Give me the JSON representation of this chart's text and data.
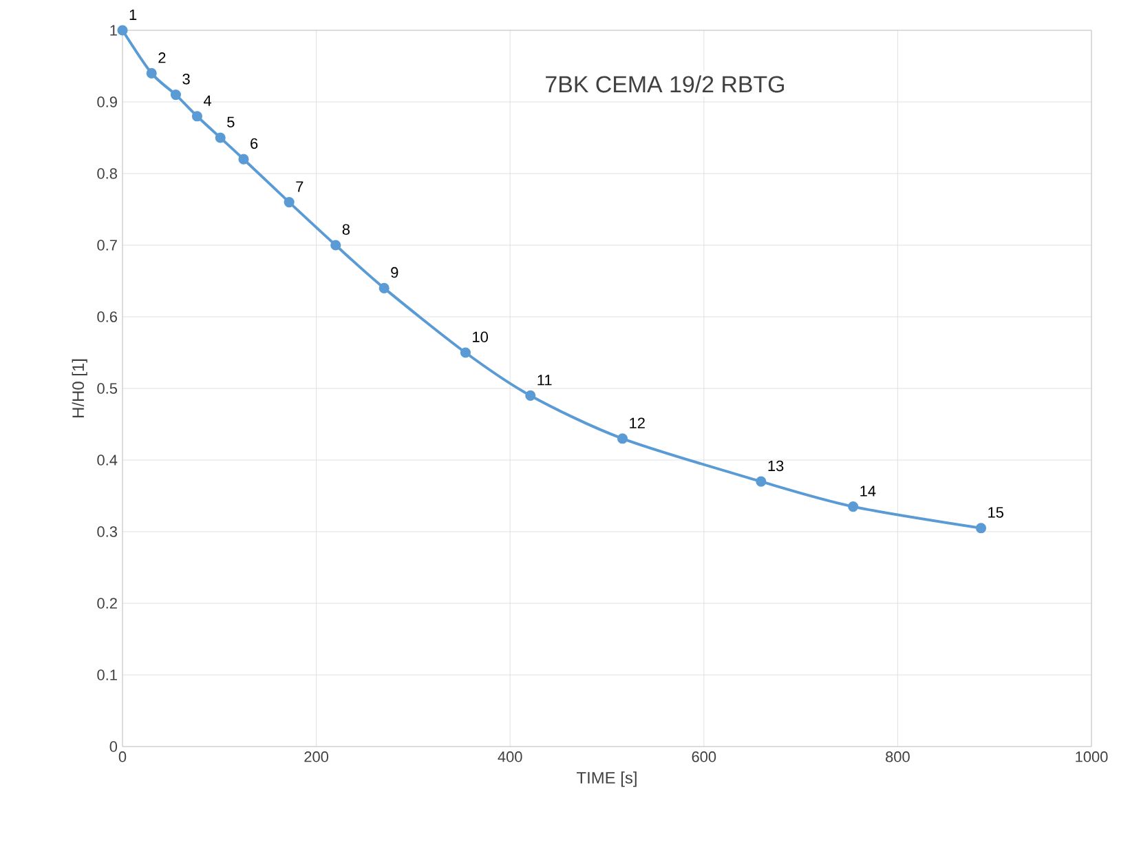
{
  "chart_data": {
    "type": "line",
    "title": "7BK CEMA 19/2 RBTG",
    "xlabel": "TIME [s]",
    "ylabel": "H/H0 [1]",
    "x": [
      0,
      30,
      55,
      77,
      101,
      125,
      172,
      220,
      270,
      354,
      421,
      516,
      659,
      754,
      886
    ],
    "series": [
      {
        "color": "#5b9bd5",
        "values": [
          1.0,
          0.94,
          0.91,
          0.88,
          0.85,
          0.82,
          0.76,
          0.7,
          0.64,
          0.55,
          0.49,
          0.43,
          0.37,
          0.335,
          0.305
        ]
      }
    ],
    "xlim": [
      0,
      1000
    ],
    "xticks": [
      0,
      200,
      400,
      600,
      800,
      1000
    ],
    "ylim": [
      0,
      1
    ],
    "yticks": [
      0,
      0.1,
      0.2,
      0.3,
      0.4,
      0.5,
      0.6,
      0.7,
      0.8,
      0.9,
      1
    ],
    "grid": true,
    "marker": "circle",
    "line_style": "solid",
    "annotations": [
      {
        "text": "1",
        "x": 0,
        "y": 1.0
      },
      {
        "text": "2",
        "x": 30,
        "y": 0.94
      },
      {
        "text": "3",
        "x": 55,
        "y": 0.91
      },
      {
        "text": "4",
        "x": 77,
        "y": 0.88
      },
      {
        "text": "5",
        "x": 101,
        "y": 0.85
      },
      {
        "text": "6",
        "x": 125,
        "y": 0.82
      },
      {
        "text": "7",
        "x": 172,
        "y": 0.76
      },
      {
        "text": "8",
        "x": 220,
        "y": 0.7
      },
      {
        "text": "9",
        "x": 270,
        "y": 0.64
      },
      {
        "text": "10",
        "x": 354,
        "y": 0.55
      },
      {
        "text": "11",
        "x": 421,
        "y": 0.49
      },
      {
        "text": "12",
        "x": 516,
        "y": 0.43
      },
      {
        "text": "13",
        "x": 659,
        "y": 0.37
      },
      {
        "text": "14",
        "x": 754,
        "y": 0.335
      },
      {
        "text": "15",
        "x": 886,
        "y": 0.305
      }
    ]
  }
}
